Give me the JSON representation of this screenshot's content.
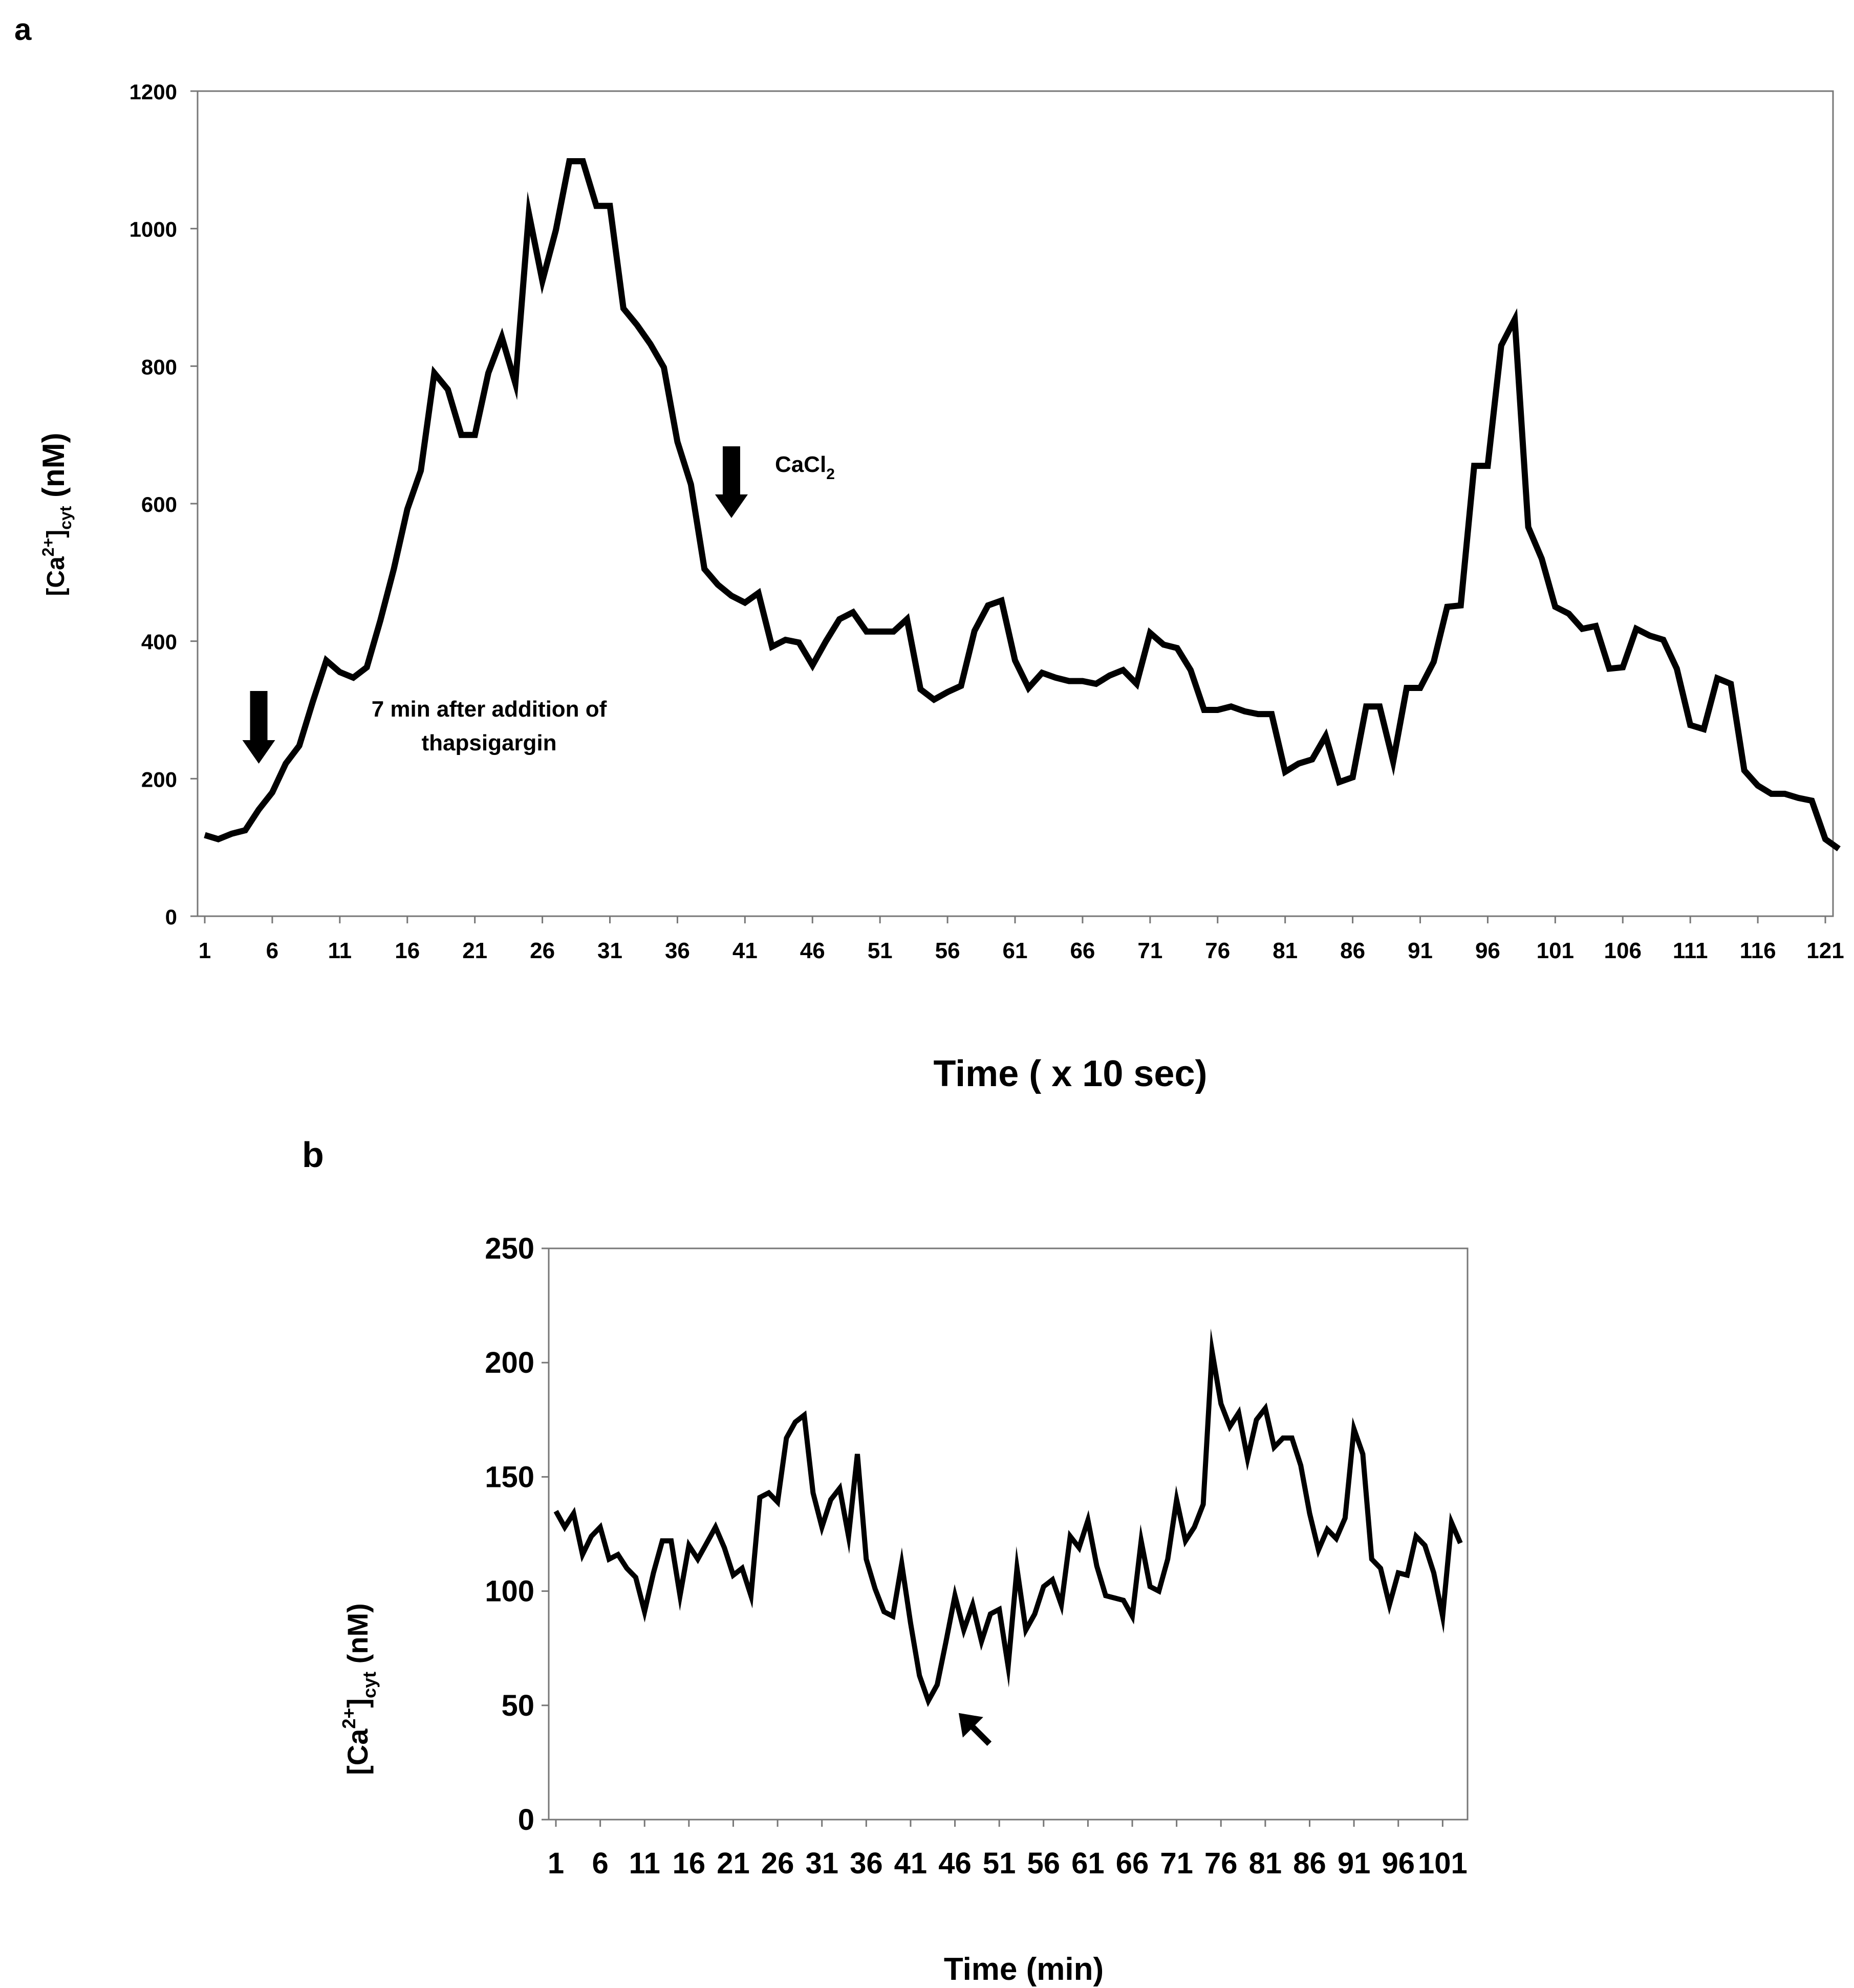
{
  "chart_data": [
    {
      "type": "line",
      "panel_label": "a",
      "xlabel": "Time ( x 10 sec)",
      "ylabel_parts": {
        "base": "[Ca",
        "sup": "2+",
        "close": "]",
        "sub": "cyt",
        "tail": " (nM)"
      },
      "ylim": [
        0,
        1200
      ],
      "yticks": [
        0,
        200,
        400,
        600,
        800,
        1000,
        1200
      ],
      "xlim": [
        1,
        122
      ],
      "xticks": [
        1,
        6,
        11,
        16,
        21,
        26,
        31,
        36,
        41,
        46,
        51,
        56,
        61,
        66,
        71,
        76,
        81,
        86,
        91,
        96,
        101,
        106,
        111,
        116,
        121
      ],
      "annotations": {
        "thapsigargin": {
          "x": 5,
          "lines": [
            "7 min after addition of",
            "thapsigargin"
          ]
        },
        "cacl2": {
          "x": 40,
          "base": "CaCl",
          "sub": "2"
        }
      },
      "series": [
        {
          "name": "[Ca2+]cyt",
          "x_start": 1,
          "values": [
            118,
            112,
            120,
            125,
            155,
            180,
            222,
            248,
            312,
            372,
            355,
            347,
            362,
            430,
            505,
            592,
            648,
            790,
            766,
            700,
            700,
            790,
            842,
            775,
            1022,
            924,
            998,
            1098,
            1098,
            1033,
            1033,
            884,
            860,
            832,
            798,
            690,
            628,
            505,
            482,
            466,
            456,
            470,
            392,
            402,
            398,
            365,
            400,
            432,
            442,
            414,
            414,
            414,
            432,
            330,
            315,
            326,
            335,
            415,
            452,
            459,
            372,
            332,
            354,
            347,
            342,
            342,
            338,
            350,
            358,
            338,
            412,
            395,
            390,
            358,
            300,
            300,
            305,
            298,
            294,
            294,
            210,
            222,
            228,
            262,
            195,
            202,
            305,
            305,
            225,
            332,
            332,
            370,
            450,
            452,
            655,
            655,
            830,
            868,
            566,
            520,
            450,
            440,
            418,
            422,
            360,
            362,
            418,
            408,
            402,
            360,
            278,
            272,
            346,
            338,
            212,
            190,
            178,
            178,
            172,
            168,
            112,
            98
          ]
        }
      ]
    },
    {
      "type": "line",
      "panel_label": "b",
      "xlabel": "Time (min)",
      "ylabel_parts": {
        "base": "[Ca",
        "sup": "2+",
        "close": "]",
        "sub": "cyt",
        "tail": " (nM)"
      },
      "ylim": [
        0,
        250
      ],
      "yticks": [
        0,
        50,
        100,
        150,
        200,
        250
      ],
      "xlim": [
        1,
        104
      ],
      "xticks": [
        1,
        6,
        11,
        16,
        21,
        26,
        31,
        36,
        41,
        46,
        51,
        56,
        61,
        66,
        71,
        76,
        81,
        86,
        91,
        96,
        101
      ],
      "annotations": {
        "arrow_x": 47
      },
      "series": [
        {
          "name": "[Ca2+]cyt",
          "x_start": 1,
          "values": [
            135,
            128,
            134,
            116,
            124,
            128,
            114,
            116,
            110,
            106,
            91,
            108,
            122,
            122,
            98,
            120,
            114,
            121,
            128,
            119,
            107,
            110,
            98,
            141,
            143,
            139,
            167,
            174,
            177,
            143,
            128,
            140,
            145,
            124,
            160,
            114,
            101,
            91,
            89,
            112,
            86,
            63,
            52,
            59,
            78,
            98,
            83,
            94,
            78,
            90,
            92,
            67,
            110,
            83,
            90,
            102,
            105,
            94,
            124,
            119,
            131,
            111,
            98,
            97,
            96,
            89,
            122,
            102,
            100,
            114,
            140,
            122,
            128,
            138,
            205,
            182,
            172,
            178,
            158,
            175,
            180,
            163,
            167,
            167,
            155,
            134,
            118,
            127,
            123,
            132,
            171,
            160,
            114,
            110,
            94,
            108,
            107,
            124,
            120,
            108,
            89,
            130,
            121
          ]
        }
      ]
    }
  ]
}
